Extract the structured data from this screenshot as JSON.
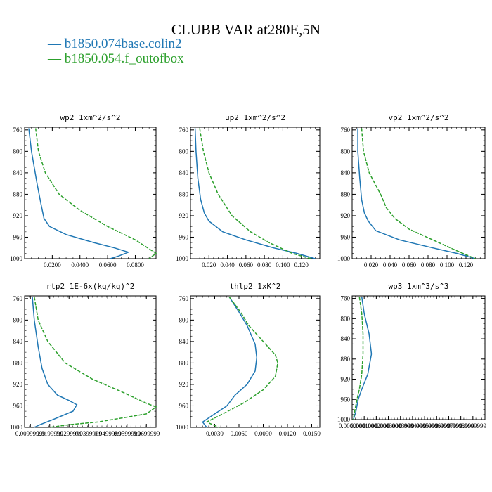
{
  "header": {
    "title": "CLUBB VAR at280E,5N",
    "legend": [
      {
        "label": "b1850.074base.colin2",
        "color": "#1f77b4"
      },
      {
        "label": "b1850.054.f_outofbox",
        "color": "#2ca02c"
      }
    ]
  },
  "chart_data": [
    {
      "type": "line",
      "title": "wp2  1xm^2/s^2",
      "xlim": [
        0,
        0.095
      ],
      "xticks": [
        0.02,
        0.04,
        0.06,
        0.08
      ],
      "xticklabels": [
        "0.0200",
        "0.0400",
        "0.0600",
        "0.0800"
      ],
      "ylim": [
        1000,
        755
      ],
      "yticks": [
        760,
        800,
        840,
        880,
        920,
        960,
        1000
      ],
      "yticklabels": [
        "760",
        "800",
        "840",
        "880",
        "920",
        "960",
        "1000"
      ],
      "series": [
        {
          "color": "#1f77b4",
          "dash": "",
          "points": [
            [
              0.003,
              757
            ],
            [
              0.005,
              800
            ],
            [
              0.009,
              860
            ],
            [
              0.012,
              900
            ],
            [
              0.014,
              925
            ],
            [
              0.018,
              940
            ],
            [
              0.03,
              955
            ],
            [
              0.05,
              970
            ],
            [
              0.065,
              980
            ],
            [
              0.075,
              988
            ],
            [
              0.068,
              995
            ],
            [
              0.062,
              1000
            ]
          ]
        },
        {
          "color": "#2ca02c",
          "dash": "5,2",
          "points": [
            [
              0.008,
              757
            ],
            [
              0.01,
              800
            ],
            [
              0.015,
              840
            ],
            [
              0.025,
              880
            ],
            [
              0.04,
              910
            ],
            [
              0.06,
              940
            ],
            [
              0.08,
              965
            ],
            [
              0.095,
              990
            ],
            [
              0.09,
              1000
            ]
          ]
        }
      ]
    },
    {
      "type": "line",
      "title": "up2  1xm^2/s^2",
      "xlim": [
        0,
        0.14
      ],
      "xticks": [
        0.02,
        0.04,
        0.06,
        0.08,
        0.1,
        0.12
      ],
      "xticklabels": [
        "0.020",
        "0.040",
        "0.060",
        "0.080",
        "0.100",
        "0.120"
      ],
      "ylim": [
        1000,
        755
      ],
      "yticks": [
        760,
        800,
        840,
        880,
        920,
        960,
        1000
      ],
      "yticklabels": [
        "760",
        "800",
        "840",
        "880",
        "920",
        "960",
        "1000"
      ],
      "series": [
        {
          "color": "#1f77b4",
          "dash": "",
          "points": [
            [
              0.005,
              757
            ],
            [
              0.006,
              800
            ],
            [
              0.008,
              850
            ],
            [
              0.011,
              890
            ],
            [
              0.015,
              915
            ],
            [
              0.02,
              930
            ],
            [
              0.035,
              950
            ],
            [
              0.06,
              965
            ],
            [
              0.09,
              980
            ],
            [
              0.115,
              990
            ],
            [
              0.135,
              1000
            ]
          ]
        },
        {
          "color": "#2ca02c",
          "dash": "5,2",
          "points": [
            [
              0.01,
              757
            ],
            [
              0.014,
              800
            ],
            [
              0.02,
              840
            ],
            [
              0.03,
              880
            ],
            [
              0.045,
              920
            ],
            [
              0.065,
              950
            ],
            [
              0.085,
              970
            ],
            [
              0.11,
              990
            ],
            [
              0.13,
              1000
            ]
          ]
        }
      ]
    },
    {
      "type": "line",
      "title": "vp2  1xm^2/s^2",
      "xlim": [
        0,
        0.14
      ],
      "xticks": [
        0.02,
        0.04,
        0.06,
        0.08,
        0.1,
        0.12
      ],
      "xticklabels": [
        "0.020",
        "0.040",
        "0.060",
        "0.080",
        "0.100",
        "0.120"
      ],
      "ylim": [
        1000,
        755
      ],
      "yticks": [
        760,
        800,
        840,
        880,
        920,
        960,
        1000
      ],
      "yticklabels": [
        "760",
        "800",
        "840",
        "880",
        "920",
        "960",
        "1000"
      ],
      "series": [
        {
          "color": "#1f77b4",
          "dash": "",
          "points": [
            [
              0.006,
              757
            ],
            [
              0.006,
              800
            ],
            [
              0.008,
              850
            ],
            [
              0.01,
              890
            ],
            [
              0.013,
              915
            ],
            [
              0.017,
              930
            ],
            [
              0.025,
              948
            ],
            [
              0.05,
              965
            ],
            [
              0.085,
              980
            ],
            [
              0.11,
              990
            ],
            [
              0.13,
              1000
            ]
          ]
        },
        {
          "color": "#2ca02c",
          "dash": "5,2",
          "points": [
            [
              0.01,
              757
            ],
            [
              0.012,
              800
            ],
            [
              0.018,
              840
            ],
            [
              0.03,
              880
            ],
            [
              0.036,
              905
            ],
            [
              0.045,
              925
            ],
            [
              0.06,
              945
            ],
            [
              0.085,
              965
            ],
            [
              0.11,
              985
            ],
            [
              0.13,
              1000
            ]
          ]
        }
      ]
    },
    {
      "type": "line",
      "title": "rtp2  1E-6x(kg/kg)^2",
      "xlim": [
        0.007,
        0.075
      ],
      "xticks": [
        0.01,
        0.02,
        0.03,
        0.04,
        0.05,
        0.06,
        0.07
      ],
      "xticklabels": [
        "0.00999999",
        "0.0199999",
        "0.0299999",
        "0.0399999",
        "0.0499999",
        "0.0599999",
        "0.0699999"
      ],
      "ylim": [
        1000,
        755
      ],
      "yticks": [
        760,
        800,
        840,
        880,
        920,
        960,
        1000
      ],
      "yticklabels": [
        "760",
        "800",
        "840",
        "880",
        "920",
        "960",
        "1000"
      ],
      "series": [
        {
          "color": "#1f77b4",
          "dash": "",
          "points": [
            [
              0.011,
              757
            ],
            [
              0.012,
              800
            ],
            [
              0.014,
              850
            ],
            [
              0.016,
              890
            ],
            [
              0.019,
              920
            ],
            [
              0.024,
              940
            ],
            [
              0.03,
              950
            ],
            [
              0.034,
              958
            ],
            [
              0.032,
              970
            ],
            [
              0.022,
              985
            ],
            [
              0.015,
              995
            ],
            [
              0.012,
              1000
            ]
          ]
        },
        {
          "color": "#2ca02c",
          "dash": "5,2",
          "points": [
            [
              0.012,
              757
            ],
            [
              0.014,
              800
            ],
            [
              0.019,
              840
            ],
            [
              0.028,
              880
            ],
            [
              0.042,
              910
            ],
            [
              0.058,
              935
            ],
            [
              0.07,
              955
            ],
            [
              0.075,
              962
            ],
            [
              0.07,
              975
            ],
            [
              0.045,
              990
            ],
            [
              0.03,
              995
            ],
            [
              0.02,
              1000
            ]
          ]
        }
      ]
    },
    {
      "type": "line",
      "title": "thlp2  1xK^2",
      "xlim": [
        0,
        0.016
      ],
      "xticks": [
        0.003,
        0.006,
        0.009,
        0.012,
        0.015
      ],
      "xticklabels": [
        "0.0030",
        "0.0060",
        "0.0090",
        "0.0120",
        "0.0150"
      ],
      "ylim": [
        1000,
        755
      ],
      "yticks": [
        760,
        800,
        840,
        880,
        920,
        960,
        1000
      ],
      "yticklabels": [
        "760",
        "800",
        "840",
        "880",
        "920",
        "960",
        "1000"
      ],
      "series": [
        {
          "color": "#1f77b4",
          "dash": "",
          "points": [
            [
              0.0048,
              757
            ],
            [
              0.006,
              785
            ],
            [
              0.007,
              810
            ],
            [
              0.008,
              845
            ],
            [
              0.0082,
              870
            ],
            [
              0.008,
              895
            ],
            [
              0.007,
              920
            ],
            [
              0.0055,
              940
            ],
            [
              0.0045,
              960
            ],
            [
              0.003,
              975
            ],
            [
              0.0015,
              990
            ],
            [
              0.002,
              1000
            ]
          ]
        },
        {
          "color": "#2ca02c",
          "dash": "5,2",
          "points": [
            [
              0.0048,
              757
            ],
            [
              0.0062,
              785
            ],
            [
              0.0072,
              810
            ],
            [
              0.009,
              840
            ],
            [
              0.0105,
              865
            ],
            [
              0.0108,
              880
            ],
            [
              0.0105,
              905
            ],
            [
              0.009,
              930
            ],
            [
              0.0065,
              955
            ],
            [
              0.004,
              975
            ],
            [
              0.002,
              990
            ],
            [
              0.0035,
              1000
            ]
          ]
        }
      ]
    },
    {
      "type": "line",
      "title": "wp3  1xm^3/s^3",
      "xlim": [
        0,
        0.0011
      ],
      "xticks": [
        0,
        0.0001,
        0.0002,
        0.0003,
        0.0004,
        0.0005,
        0.0006,
        0.0007,
        0.0008,
        0.0009,
        0.001
      ],
      "xticklabels": [
        "0.0000000",
        "0.0001000",
        "0.0002000",
        "0.0003000",
        "0.0003999",
        "0.0004999",
        "0.0005999",
        "0.0006999",
        "0.0007999",
        "0.0008999",
        "0.0009999"
      ],
      "ylim": [
        1000,
        755
      ],
      "yticks": [
        760,
        800,
        840,
        880,
        920,
        960,
        1000
      ],
      "yticklabels": [
        "760",
        "800",
        "840",
        "880",
        "920",
        "960",
        "1000"
      ],
      "series": [
        {
          "color": "#1f77b4",
          "dash": "",
          "points": [
            [
              8e-05,
              757
            ],
            [
              0.0001,
              790
            ],
            [
              0.00014,
              830
            ],
            [
              0.00016,
              870
            ],
            [
              0.00013,
              910
            ],
            [
              8e-05,
              940
            ],
            [
              5e-05,
              960
            ],
            [
              3e-05,
              985
            ],
            [
              1e-05,
              1000
            ]
          ]
        },
        {
          "color": "#2ca02c",
          "dash": "5,2",
          "points": [
            [
              6e-05,
              757
            ],
            [
              8e-05,
              790
            ],
            [
              9e-05,
              830
            ],
            [
              9e-05,
              870
            ],
            [
              8e-05,
              910
            ],
            [
              6e-05,
              940
            ],
            [
              4e-05,
              960
            ],
            [
              2e-05,
              985
            ],
            [
              1e-05,
              1000
            ]
          ]
        }
      ]
    }
  ]
}
